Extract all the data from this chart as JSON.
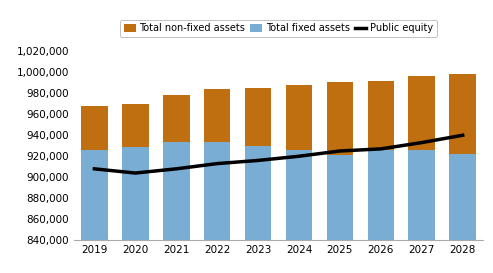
{
  "years": [
    2019,
    2020,
    2021,
    2022,
    2023,
    2024,
    2025,
    2026,
    2027,
    2028
  ],
  "fixed_assets": [
    926000,
    929000,
    934000,
    934000,
    930000,
    926000,
    921000,
    926000,
    926000,
    922000
  ],
  "non_fixed_assets": [
    42000,
    41000,
    44000,
    50000,
    55000,
    62000,
    70000,
    66000,
    70000,
    76000
  ],
  "public_equity": [
    908000,
    904000,
    908000,
    913000,
    916000,
    920000,
    925000,
    927000,
    933000,
    940000
  ],
  "fixed_color": "#7aadd4",
  "non_fixed_color": "#bf6e10",
  "equity_color": "#000000",
  "ylim_min": 840000,
  "ylim_max": 1022000,
  "yticks": [
    840000,
    860000,
    880000,
    900000,
    920000,
    940000,
    960000,
    980000,
    1000000,
    1020000
  ],
  "legend_labels": [
    "Total non-fixed assets",
    "Total fixed assets",
    "Public equity"
  ],
  "bg_color": "#ffffff",
  "plot_bg_color": "#ffffff"
}
